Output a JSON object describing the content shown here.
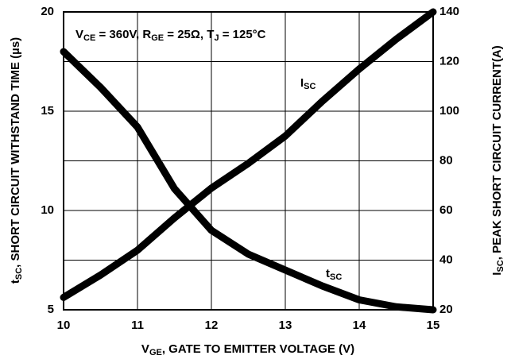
{
  "chart_data": {
    "type": "line",
    "annotation": [
      "V",
      "CE",
      " = 360V, R",
      "GE",
      " = 25Ω, T",
      "J",
      " = 125°C"
    ],
    "xlabel": [
      "V",
      "GE",
      ", GATE TO EMITTER VOLTAGE (V)"
    ],
    "ylabel": [
      "t",
      "SC",
      ", SHORT CIRCUIT WITHSTAND TIME (µs)"
    ],
    "y2label": [
      "I",
      "SC",
      ", PEAK SHORT CIRCUIT CURRENT(A)"
    ],
    "x": [
      10,
      10.5,
      11,
      11.5,
      12,
      12.5,
      13,
      13.5,
      14,
      14.5,
      15
    ],
    "series": [
      {
        "name": [
          "t",
          "SC"
        ],
        "color": "#000000",
        "values": [
          18,
          16.2,
          14.2,
          11.1,
          9.0,
          7.8,
          7.0,
          6.2,
          5.5,
          5.15,
          5.0
        ]
      },
      {
        "name": [
          "I",
          "SC"
        ],
        "color": "#000000",
        "axis": "y2",
        "values": [
          25,
          34,
          44,
          57,
          69,
          79,
          90,
          104,
          117,
          129,
          140
        ]
      }
    ],
    "xlim": [
      10,
      15
    ],
    "xticks": [
      10,
      11,
      12,
      13,
      14,
      15
    ],
    "ylim": [
      5,
      20
    ],
    "yticks": [
      5,
      10,
      15,
      20
    ],
    "y2lim": [
      20,
      140
    ],
    "y2ticks": [
      20,
      40,
      60,
      80,
      100,
      120,
      140
    ],
    "grid": true
  }
}
